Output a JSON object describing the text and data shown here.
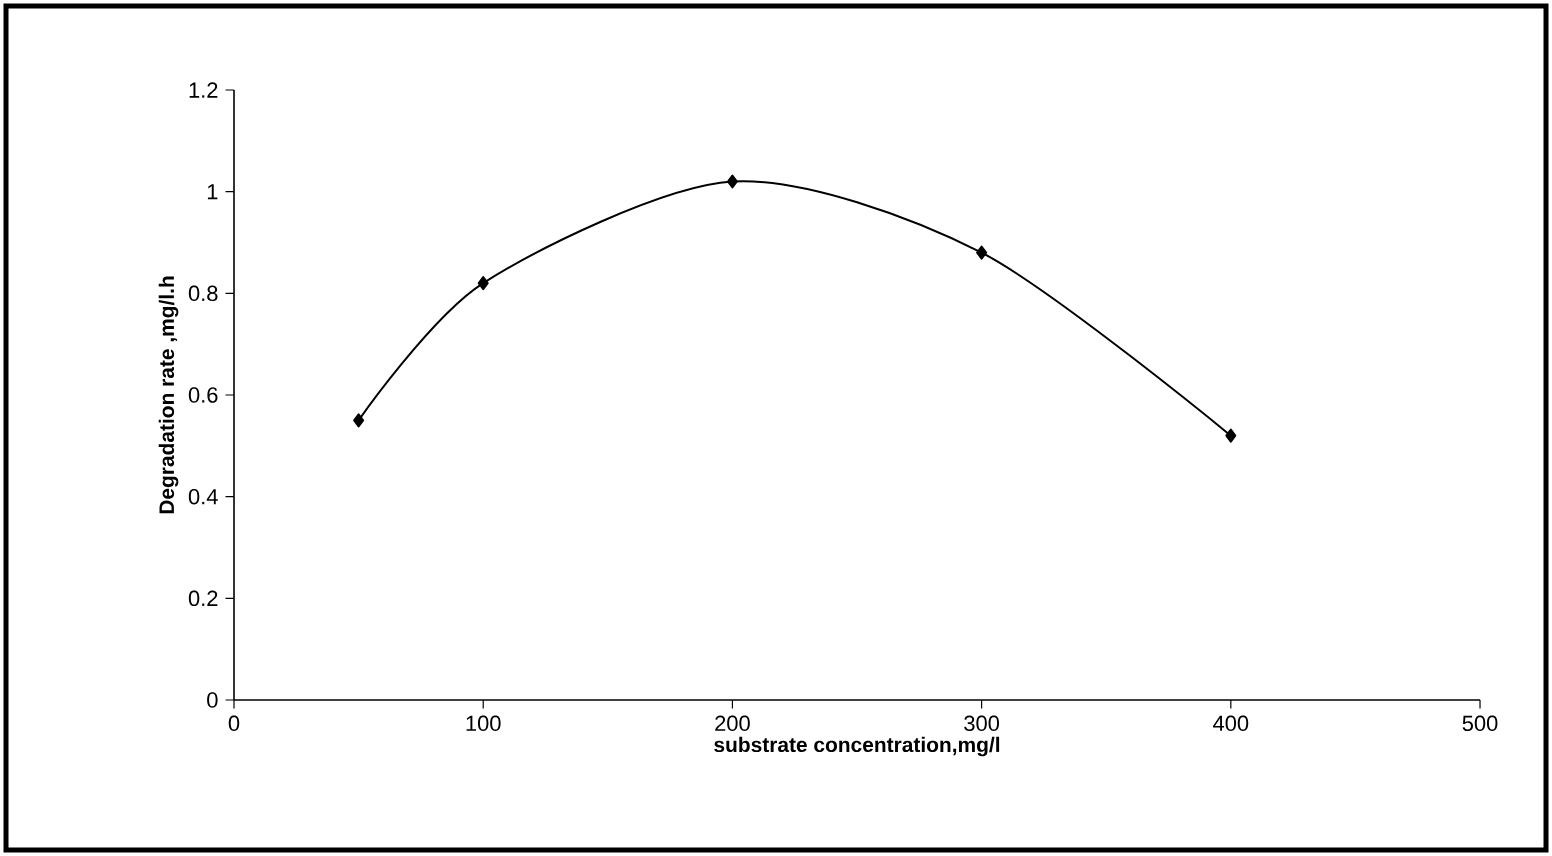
{
  "chart_data": {
    "type": "line",
    "xlabel": "substrate concentration,mg/l",
    "ylabel": "Degradation rate ,mg/l.h",
    "x": [
      50,
      100,
      200,
      300,
      400
    ],
    "series": [
      {
        "color": "#000000",
        "values": [
          0.55,
          0.82,
          1.02,
          0.88,
          0.52
        ]
      }
    ],
    "xlim": [
      0,
      500
    ],
    "xticks": [
      0,
      100,
      200,
      300,
      400,
      500
    ],
    "ylim": [
      0,
      1.2
    ],
    "yticks": [
      0,
      0.2,
      0.4,
      0.6,
      0.8,
      1,
      1.2
    ],
    "grid": false,
    "marker": "diamond",
    "line_style": "solid"
  }
}
